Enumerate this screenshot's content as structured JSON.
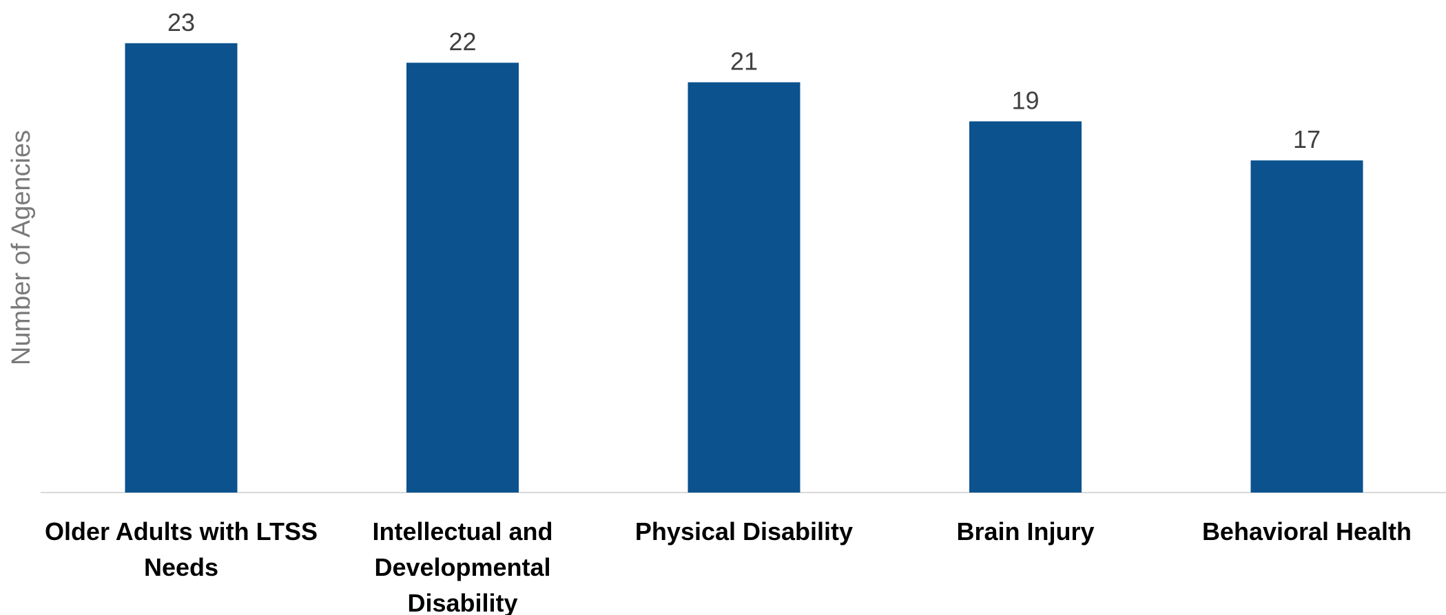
{
  "chart_data": {
    "type": "bar",
    "title": "",
    "xlabel": "",
    "ylabel": "Number of Agencies",
    "categories": [
      [
        "Older Adults with LTSS",
        "Needs"
      ],
      [
        "Intellectual and",
        "Developmental",
        "Disability"
      ],
      [
        "Physical Disability"
      ],
      [
        "Brain Injury"
      ],
      [
        "Behavioral Health"
      ]
    ],
    "values": [
      23,
      22,
      21,
      19,
      17
    ],
    "data_labels": [
      "23",
      "22",
      "21",
      "19",
      "17"
    ],
    "ylim": [
      0,
      25
    ],
    "grid": false,
    "legend": "none",
    "colors": {
      "bar": "#0b528f",
      "axis": "#d9d9d9"
    }
  }
}
